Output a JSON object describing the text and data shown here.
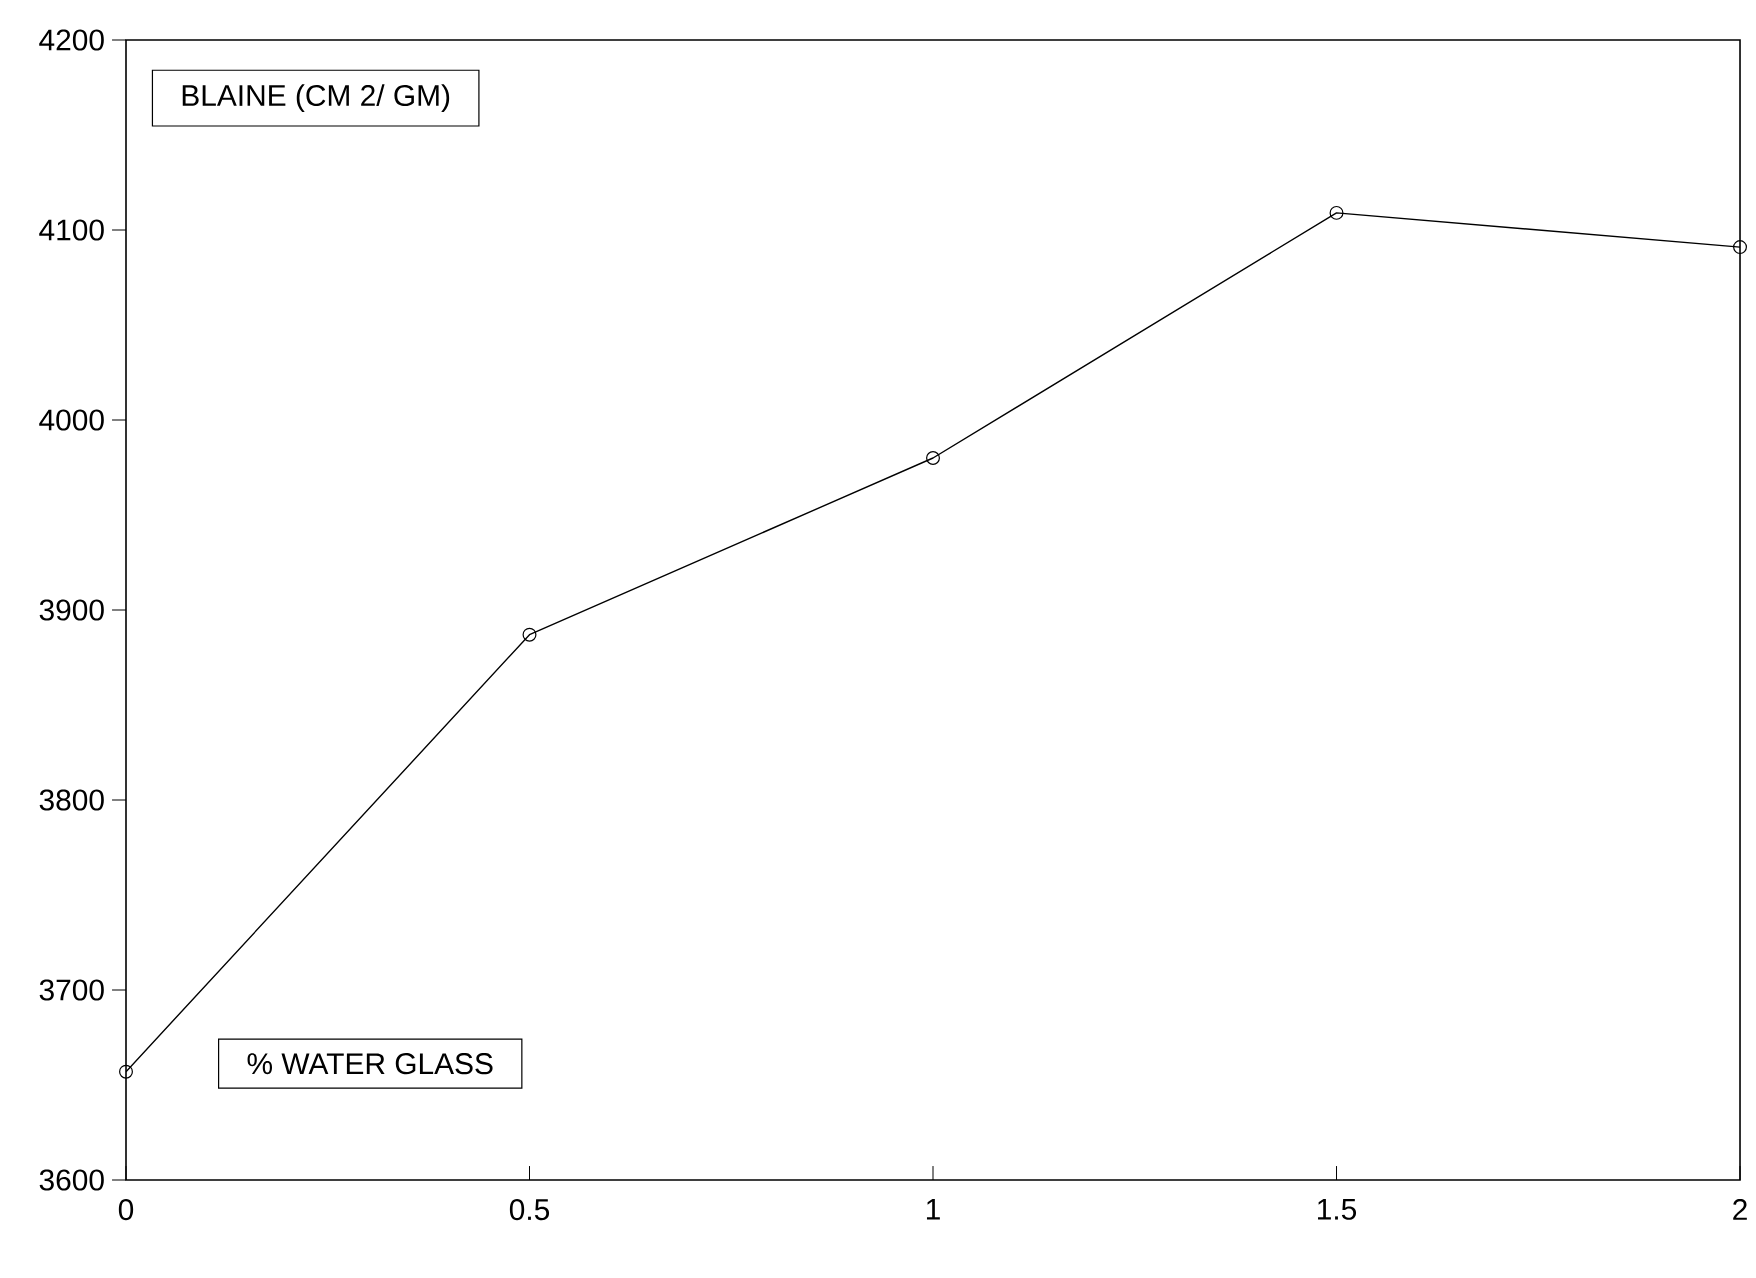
{
  "chart_data": {
    "type": "line",
    "xlabel": "% WATER GLASS",
    "ylabel": "BLAINE (CM 2/ GM)",
    "x": [
      0,
      0.5,
      1,
      1.5,
      2
    ],
    "series": [
      {
        "color": "#000000",
        "values": [
          3657,
          3887,
          3980,
          4109,
          4091
        ]
      }
    ],
    "xlim": [
      0,
      2
    ],
    "xticks": [
      0,
      0.5,
      1,
      1.5,
      2
    ],
    "ylim": [
      3600,
      4200
    ],
    "yticks": [
      3600,
      3700,
      3800,
      3900,
      4000,
      4100,
      4200
    ],
    "marker": "circle",
    "line_style": "solid",
    "grid": false
  }
}
